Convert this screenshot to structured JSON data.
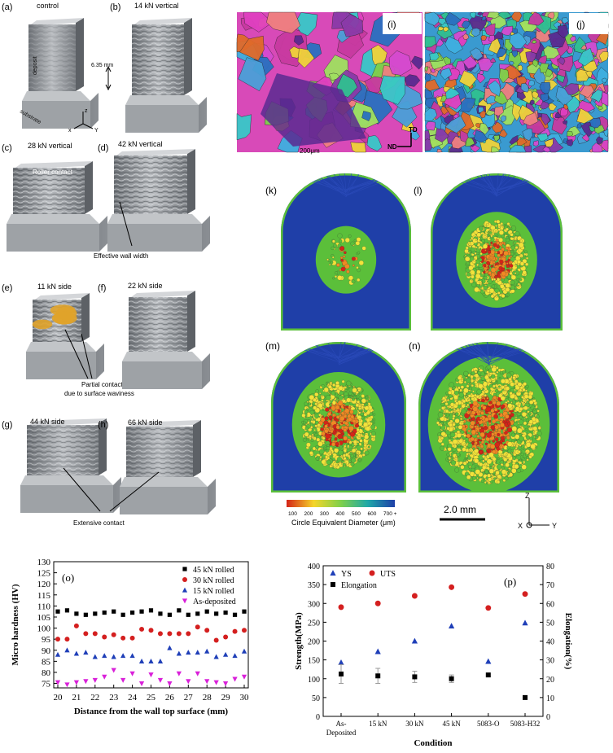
{
  "colors": {
    "metal": "#9a9ea3",
    "metalDark": "#55595e",
    "ebsdBlue": "#1f3fa8",
    "ebsdGreen": "#5bbf3a",
    "ebsdYellow": "#f2e33a",
    "ebsdOrange": "#f08a24",
    "ebsdRed": "#d42418",
    "contact": "#e0a32a"
  },
  "photos": {
    "a": {
      "tag": "(a)",
      "caption": "control",
      "deposit": "deposit",
      "substrate": "substrate",
      "dim": "6.35 mm",
      "axisZ": "z",
      "axisX": "x",
      "axisY": "Y"
    },
    "b": {
      "tag": "(b)",
      "caption": "14 kN vertical"
    },
    "c": {
      "tag": "(c)",
      "caption": "28 kN vertical",
      "note": "Roller contact"
    },
    "d": {
      "tag": "(d)",
      "caption": "42 kN vertical",
      "note": "Effective wall width"
    },
    "e": {
      "tag": "(e)",
      "caption": "11 kN side",
      "note1": "Partial contact",
      "note2": "due to surface waviness"
    },
    "f": {
      "tag": "(f)",
      "caption": "22 kN side"
    },
    "g": {
      "tag": "(g)",
      "caption": "44 kN side"
    },
    "h": {
      "tag": "(h)",
      "caption": "66 kN side",
      "note": "Extensive contact"
    }
  },
  "ebsd": {
    "i": "(i)",
    "j": "(j)",
    "scale": "200μm",
    "td": "TD",
    "nd": "ND"
  },
  "grains": {
    "k": "(k)",
    "l": "(l)",
    "m": "(m)",
    "n": "(n)",
    "colorbarTitle": "Circle Equivalent Diameter (μm)",
    "ticks": [
      "100",
      "200",
      "300",
      "400",
      "500",
      "600",
      "700 +"
    ],
    "scale": "2.0 mm",
    "axZ": "Z",
    "axX": "X",
    "axY": "Y"
  },
  "chart_data": [
    {
      "type": "scatter",
      "panel": "(o)",
      "xlabel": "Distance from the wall top surface (mm)",
      "ylabel": "Micro hardness (HV)",
      "xlim": [
        20,
        30
      ],
      "ylim": [
        73,
        130
      ],
      "xticks": [
        "20",
        "21",
        "22",
        "23",
        "24",
        "25",
        "26",
        "27",
        "28",
        "29",
        "30"
      ],
      "yticks": [
        "75",
        "80",
        "85",
        "90",
        "95",
        "100",
        "105",
        "110",
        "115",
        "120",
        "125",
        "130"
      ],
      "x": [
        20,
        20.5,
        21,
        21.5,
        22,
        22.5,
        23,
        23.5,
        24,
        24.5,
        25,
        25.5,
        26,
        26.5,
        27,
        27.5,
        28,
        28.5,
        29,
        29.5,
        30
      ],
      "series": [
        {
          "name": "45 kN rolled",
          "marker": "square",
          "color": "#000000",
          "values": [
            107.5,
            108,
            106.5,
            106,
            106.5,
            107,
            107.5,
            106,
            107,
            107.5,
            108,
            106.5,
            106,
            108,
            106,
            106.5,
            107.5,
            106.5,
            107,
            106,
            107.5
          ]
        },
        {
          "name": "30 kN rolled",
          "marker": "circle",
          "color": "#d41f1f",
          "values": [
            95,
            95,
            101,
            97.5,
            97.5,
            96,
            97,
            95.5,
            95.5,
            99.5,
            99,
            97.5,
            97.5,
            97.5,
            97.5,
            100.5,
            99,
            94.5,
            96,
            98.5,
            99
          ]
        },
        {
          "name": "15 kN rolled",
          "marker": "triangle",
          "color": "#1f3fb8",
          "values": [
            88,
            90,
            88.5,
            89,
            87,
            87.5,
            87,
            87.5,
            87.5,
            85,
            85,
            85,
            91,
            88.5,
            89,
            89,
            89.5,
            87,
            88,
            87.5,
            89.5
          ]
        },
        {
          "name": "As-deposited",
          "marker": "triangle-down",
          "color": "#d920d9",
          "values": [
            75.5,
            74.5,
            75.5,
            76,
            76.5,
            78,
            81,
            76.5,
            79.5,
            75,
            79,
            76.5,
            75,
            79.5,
            76,
            79.5,
            76,
            75.5,
            75,
            77,
            78
          ]
        }
      ]
    },
    {
      "type": "scatter",
      "panel": "(p)",
      "xlabel": "Condition",
      "ylabel": "Strength(MPa)",
      "y2label": "Elongation(%)",
      "ylim": [
        0,
        400
      ],
      "y2lim": [
        0,
        80
      ],
      "yticks": [
        "0",
        "50",
        "100",
        "150",
        "200",
        "250",
        "300",
        "350",
        "400"
      ],
      "y2ticks": [
        "0",
        "10",
        "20",
        "30",
        "40",
        "50",
        "60",
        "70",
        "80"
      ],
      "categories": [
        "As-Deposited",
        "15 kN",
        "30 kN",
        "45 kN",
        "5083-O",
        "5083-H32"
      ],
      "series": [
        {
          "name": "YS",
          "axis": "left",
          "marker": "triangle",
          "color": "#1f3fb8",
          "values": [
            143,
            172,
            200,
            240,
            146,
            248
          ]
        },
        {
          "name": "UTS",
          "axis": "left",
          "marker": "circle",
          "color": "#d41f1f",
          "values": [
            290,
            300,
            320,
            343,
            288,
            325
          ]
        },
        {
          "name": "Elongation",
          "axis": "right",
          "marker": "square",
          "color": "#000000",
          "values": [
            22.5,
            21.5,
            21,
            20,
            22,
            10
          ],
          "errors": [
            5,
            4,
            3,
            2,
            0,
            0
          ]
        }
      ]
    }
  ]
}
